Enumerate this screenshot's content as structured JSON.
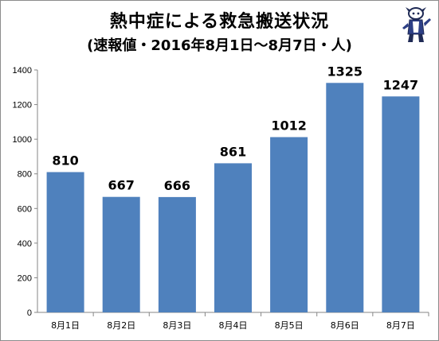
{
  "chart_data": {
    "type": "bar",
    "title": "熱中症による救急搬送状況",
    "subtitle": "(速報値・2016年8月1日〜8月7日・人)",
    "categories": [
      "8月1日",
      "8月2日",
      "8月3日",
      "8月4日",
      "8月5日",
      "8月6日",
      "8月7日"
    ],
    "values": [
      810,
      667,
      666,
      861,
      1012,
      1325,
      1247
    ],
    "data_labels": [
      "810",
      "667",
      "666",
      "861",
      "1012",
      "1325",
      "1247"
    ],
    "xlabel": "",
    "ylabel": "",
    "ylim": [
      0,
      1400
    ],
    "yticks": [
      0,
      200,
      400,
      600,
      800,
      1000,
      1200,
      1400
    ],
    "ytick_labels": [
      "0",
      "200",
      "400",
      "600",
      "800",
      "1000",
      "1200",
      "1400"
    ],
    "grid": false,
    "legend": "none",
    "bar_color": "#4f81bd",
    "axis_color": "#868686"
  },
  "logo": {
    "icon": "mascot-figure-icon"
  }
}
